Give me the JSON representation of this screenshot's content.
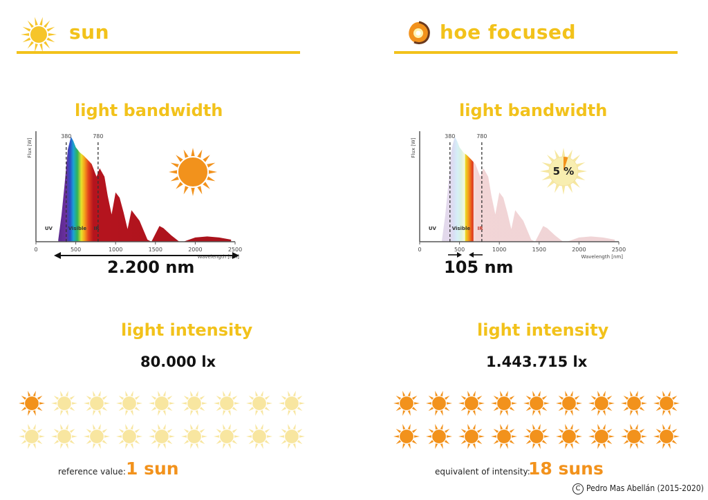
{
  "panels": {
    "left": {
      "title": "sun",
      "icon": "sun-icon",
      "bandwidth_heading": "light bandwidth",
      "bandwidth_value": "2.200 nm",
      "intensity_heading": "light intensity",
      "intensity_value": "80.000 lx",
      "footer_label": "reference value:",
      "footer_value": "1 sun",
      "suns_lit": 1,
      "suns_total": 18
    },
    "right": {
      "title": "hoe focused",
      "icon": "focused-sun-icon",
      "bandwidth_heading": "light bandwidth",
      "bandwidth_value": "105 nm",
      "percent_badge": "5 %",
      "percent_fraction": 0.05,
      "intensity_heading": "light intensity",
      "intensity_value": "1.443.715 lx",
      "footer_label": "equivalent of intensity:",
      "footer_value": "18 suns",
      "suns_lit": 18,
      "suns_total": 18
    }
  },
  "credit": "Pedro Mas Abellán (2015-2020)",
  "colors": {
    "accent_yellow": "#f2c21b",
    "sun_orange": "#f2921c",
    "sun_pale": "#f8e6a0",
    "ir_red": "#a8131c",
    "ir_faded": "#ead0d0"
  },
  "chart_data": [
    {
      "type": "area",
      "xlabel": "Wavelength [nm]",
      "ylabel": "Flux [W]",
      "xlim": [
        0,
        2500
      ],
      "x_ticks": [
        "0",
        "500",
        "1000",
        "1500",
        "2000",
        "2500"
      ],
      "markers": [
        "380",
        "780"
      ],
      "region_labels": [
        "UV",
        "Visible",
        "IR"
      ],
      "highlight": "full",
      "series": [
        {
          "x": [
            280,
            320,
            360,
            400,
            440,
            470,
            500,
            550,
            600,
            650,
            700,
            760,
            800,
            860,
            900,
            950,
            1000,
            1050,
            1100,
            1150,
            1200,
            1300,
            1400,
            1450,
            1550,
            1600,
            1700,
            1800,
            1850,
            2000,
            2150,
            2300,
            2450
          ],
          "y": [
            0.02,
            0.25,
            0.55,
            0.88,
            1.0,
            0.96,
            0.9,
            0.85,
            0.82,
            0.78,
            0.74,
            0.62,
            0.7,
            0.62,
            0.44,
            0.26,
            0.47,
            0.42,
            0.28,
            0.12,
            0.3,
            0.2,
            0.02,
            0.0,
            0.15,
            0.13,
            0.06,
            0.0,
            0.0,
            0.04,
            0.05,
            0.04,
            0.02
          ]
        }
      ]
    },
    {
      "type": "area",
      "xlabel": "Wavelength [nm]",
      "ylabel": "Flux [W]",
      "xlim": [
        0,
        2500
      ],
      "x_ticks": [
        "0",
        "500",
        "1000",
        "1500",
        "2000",
        "2500"
      ],
      "markers": [
        "380",
        "780"
      ],
      "region_labels": [
        "UV",
        "Visible",
        "IR"
      ],
      "highlight": "band",
      "band_nm": [
        570,
        675
      ],
      "series": [
        {
          "x": [
            280,
            320,
            360,
            400,
            440,
            470,
            500,
            550,
            600,
            650,
            700,
            760,
            800,
            860,
            900,
            950,
            1000,
            1050,
            1100,
            1150,
            1200,
            1300,
            1400,
            1450,
            1550,
            1600,
            1700,
            1800,
            1850,
            2000,
            2150,
            2300,
            2450
          ],
          "y": [
            0.02,
            0.25,
            0.55,
            0.88,
            1.0,
            0.96,
            0.9,
            0.85,
            0.82,
            0.78,
            0.74,
            0.62,
            0.7,
            0.62,
            0.44,
            0.26,
            0.47,
            0.42,
            0.28,
            0.12,
            0.3,
            0.2,
            0.02,
            0.0,
            0.15,
            0.13,
            0.06,
            0.0,
            0.0,
            0.04,
            0.05,
            0.04,
            0.02
          ]
        }
      ]
    }
  ]
}
